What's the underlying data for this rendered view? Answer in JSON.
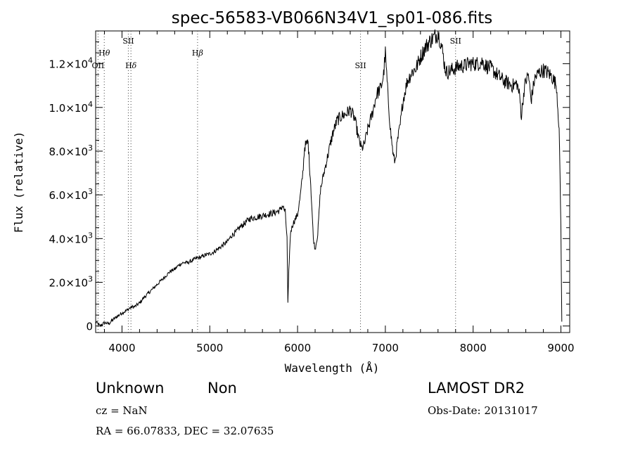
{
  "chart_data": {
    "type": "line",
    "title": "spec-56583-VB066N34V1_sp01-086.fits",
    "xlabel": "Wavelength (Å)",
    "ylabel": "Flux (relative)",
    "xlim": [
      3700,
      9100
    ],
    "ylim": [
      -300,
      13500
    ],
    "x_ticks": [
      4000,
      5000,
      6000,
      7000,
      8000,
      9000
    ],
    "x_tick_labels": [
      "4000",
      "5000",
      "6000",
      "7000",
      "8000",
      "9000"
    ],
    "y_ticks": [
      0,
      2000,
      4000,
      6000,
      8000,
      10000,
      12000
    ],
    "y_tick_labels": [
      {
        "mantissa": "0",
        "exponent": ""
      },
      {
        "mantissa": "2.0×10",
        "exponent": "3"
      },
      {
        "mantissa": "4.0×10",
        "exponent": "3"
      },
      {
        "mantissa": "6.0×10",
        "exponent": "3"
      },
      {
        "mantissa": "8.0×10",
        "exponent": "3"
      },
      {
        "mantissa": "1.0×10",
        "exponent": "4"
      },
      {
        "mantissa": "1.2×10",
        "exponent": "4"
      }
    ],
    "grid": false,
    "series": [
      {
        "x": [
          3700,
          3750,
          3800,
          3850,
          3900,
          3950,
          4000,
          4050,
          4100,
          4150,
          4200,
          4250,
          4300,
          4350,
          4400,
          4450,
          4500,
          4550,
          4600,
          4650,
          4700,
          4750,
          4800,
          4850,
          4900,
          4950,
          5000,
          5050,
          5100,
          5150,
          5200,
          5250,
          5300,
          5350,
          5400,
          5450,
          5500,
          5550,
          5600,
          5650,
          5700,
          5750,
          5800,
          5830,
          5860,
          5880,
          5890,
          5900,
          5920,
          5950,
          6000,
          6030,
          6060,
          6080,
          6100,
          6120,
          6150,
          6180,
          6200,
          6230,
          6260,
          6300,
          6350,
          6400,
          6450,
          6500,
          6550,
          6600,
          6650,
          6700,
          6730,
          6760,
          6800,
          6850,
          6900,
          6950,
          6980,
          7000,
          7030,
          7060,
          7090,
          7110,
          7140,
          7170,
          7200,
          7250,
          7300,
          7350,
          7400,
          7450,
          7500,
          7550,
          7600,
          7630,
          7650,
          7680,
          7700,
          7750,
          7800,
          7850,
          7900,
          7950,
          8000,
          8050,
          8100,
          8150,
          8200,
          8250,
          8300,
          8350,
          8400,
          8450,
          8500,
          8530,
          8550,
          8580,
          8600,
          8630,
          8660,
          8700,
          8750,
          8800,
          8850,
          8900,
          8950,
          8980,
          9000,
          9010
        ],
        "y": [
          200,
          0,
          150,
          100,
          300,
          450,
          600,
          700,
          850,
          900,
          1050,
          1300,
          1500,
          1700,
          1900,
          2100,
          2300,
          2500,
          2600,
          2800,
          2900,
          2900,
          3000,
          3100,
          3150,
          3250,
          3300,
          3400,
          3550,
          3700,
          3850,
          4150,
          4300,
          4550,
          4700,
          4900,
          4950,
          5000,
          5050,
          5100,
          5150,
          5200,
          5300,
          5500,
          5200,
          4000,
          1000,
          2500,
          4300,
          4700,
          5100,
          5900,
          7000,
          8200,
          8300,
          8400,
          6500,
          4000,
          3500,
          4200,
          6200,
          7000,
          7900,
          8800,
          9400,
          9600,
          9700,
          9900,
          9500,
          8500,
          8100,
          8300,
          9000,
          9700,
          10600,
          10900,
          11500,
          12500,
          10500,
          8900,
          7800,
          7500,
          8500,
          9200,
          10300,
          11200,
          11600,
          11800,
          12300,
          12700,
          13000,
          13200,
          13400,
          13000,
          12600,
          11800,
          11600,
          11700,
          11800,
          11900,
          11900,
          12000,
          12000,
          12000,
          12100,
          11900,
          11800,
          11600,
          11400,
          11200,
          11100,
          11000,
          11100,
          10500,
          9600,
          10800,
          11200,
          11500,
          10300,
          11300,
          11600,
          11700,
          11600,
          11400,
          11000,
          9000,
          4500,
          200
        ]
      }
    ],
    "line_markers": [
      {
        "label_main": "H",
        "label_sub": "θ",
        "x": 3798,
        "row": 2
      },
      {
        "label_main": "OII",
        "label_sub": "",
        "x": 3727,
        "row": 3
      },
      {
        "label_main": "SII",
        "label_sub": "",
        "x": 4072,
        "row": 1
      },
      {
        "label_main": "H",
        "label_sub": "δ",
        "x": 4102,
        "row": 3
      },
      {
        "label_main": "H",
        "label_sub": "β",
        "x": 4861,
        "row": 2
      },
      {
        "label_main": "SII",
        "label_sub": "",
        "x": 6717,
        "row": 3
      },
      {
        "label_main": "SII",
        "label_sub": "",
        "x": 7800,
        "row": 1
      }
    ]
  },
  "info": {
    "class": "Unknown",
    "subclass": "Non",
    "cz": "cz = NaN",
    "coords": "RA =  66.07833, DEC =  32.07635",
    "survey": "LAMOST DR2",
    "obs_date": "Obs-Date: 20131017"
  }
}
